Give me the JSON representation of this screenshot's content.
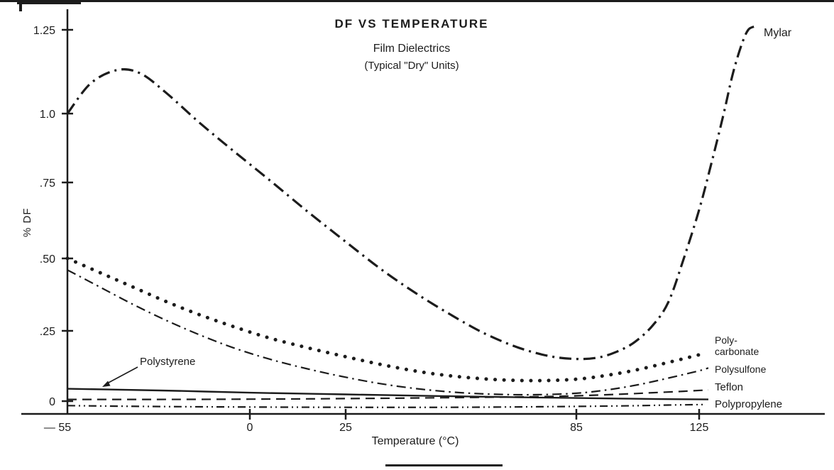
{
  "page": {
    "background": "#ffffff",
    "ink": "#1c1c1c"
  },
  "chart_data": {
    "type": "line",
    "title": "DF VS TEMPERATURE",
    "subtitle_lines": [
      "Film Dielectrics",
      "(Typical \"Dry\" Units)"
    ],
    "xlabel": "Temperature (°C)",
    "ylabel": "% DF",
    "xlim": [
      -55,
      145
    ],
    "ylim": [
      -0.05,
      1.3
    ],
    "grid": false,
    "legend_position": "labels-at-line-ends",
    "x_ticks": [
      {
        "value": -55,
        "label": "— 55"
      },
      {
        "value": 0,
        "label": "0"
      },
      {
        "value": 25,
        "label": "25"
      },
      {
        "value": 85,
        "label": "85"
      },
      {
        "value": 125,
        "label": "125"
      }
    ],
    "y_ticks": [
      {
        "value": 0,
        "label": "0"
      },
      {
        "value": 0.25,
        "label": ".25"
      },
      {
        "value": 0.5,
        "label": ".50"
      },
      {
        "value": 0.75,
        "label": ".75"
      },
      {
        "value": 1,
        "label": "1.0"
      },
      {
        "value": 1.25,
        "label": "1.25"
      }
    ],
    "series": [
      {
        "id": "mylar",
        "name": "Mylar",
        "display_label": "Mylar",
        "line_style": "dash-dot",
        "points": [
          [
            -55,
            1.0
          ],
          [
            -48,
            1.09
          ],
          [
            -40,
            1.13
          ],
          [
            -33,
            1.12
          ],
          [
            -25,
            1.06
          ],
          [
            -15,
            0.965
          ],
          [
            -5,
            0.865
          ],
          [
            5,
            0.76
          ],
          [
            15,
            0.655
          ],
          [
            25,
            0.555
          ],
          [
            35,
            0.455
          ],
          [
            45,
            0.365
          ],
          [
            55,
            0.285
          ],
          [
            62,
            0.235
          ],
          [
            70,
            0.19
          ],
          [
            78,
            0.16
          ],
          [
            85,
            0.15
          ],
          [
            92,
            0.155
          ],
          [
            98,
            0.175
          ],
          [
            104,
            0.21
          ],
          [
            110,
            0.27
          ],
          [
            115,
            0.35
          ],
          [
            120,
            0.5
          ],
          [
            125,
            0.66
          ],
          [
            129,
            0.82
          ],
          [
            133,
            1.0
          ],
          [
            136,
            1.12
          ],
          [
            139,
            1.21
          ],
          [
            141,
            1.25
          ],
          [
            143,
            1.26
          ]
        ]
      },
      {
        "id": "polycarbonate",
        "name": "Polycarbonate",
        "display_label": "Poly-\ncarbonate",
        "line_style": "dotted",
        "points": [
          [
            -55,
            0.5
          ],
          [
            -45,
            0.45
          ],
          [
            -35,
            0.4
          ],
          [
            -25,
            0.35
          ],
          [
            -15,
            0.305
          ],
          [
            -5,
            0.265
          ],
          [
            5,
            0.225
          ],
          [
            15,
            0.19
          ],
          [
            25,
            0.158
          ],
          [
            35,
            0.128
          ],
          [
            45,
            0.103
          ],
          [
            55,
            0.086
          ],
          [
            65,
            0.076
          ],
          [
            75,
            0.073
          ],
          [
            85,
            0.078
          ],
          [
            95,
            0.092
          ],
          [
            105,
            0.112
          ],
          [
            115,
            0.138
          ],
          [
            125,
            0.165
          ],
          [
            127,
            0.172
          ]
        ]
      },
      {
        "id": "polysulfone",
        "name": "Polysulfone",
        "display_label": "Polysulfone",
        "line_style": "dash-dot",
        "points": [
          [
            -55,
            0.46
          ],
          [
            -45,
            0.4
          ],
          [
            -35,
            0.34
          ],
          [
            -25,
            0.285
          ],
          [
            -15,
            0.235
          ],
          [
            -5,
            0.19
          ],
          [
            5,
            0.15
          ],
          [
            15,
            0.115
          ],
          [
            25,
            0.085
          ],
          [
            35,
            0.06
          ],
          [
            45,
            0.042
          ],
          [
            55,
            0.03
          ],
          [
            65,
            0.024
          ],
          [
            75,
            0.023
          ],
          [
            85,
            0.028
          ],
          [
            95,
            0.04
          ],
          [
            105,
            0.058
          ],
          [
            115,
            0.082
          ],
          [
            125,
            0.108
          ],
          [
            128,
            0.118
          ]
        ]
      },
      {
        "id": "polystyrene",
        "name": "Polystyrene",
        "display_label": "Polystyrene",
        "line_style": "solid",
        "points": [
          [
            -55,
            0.044
          ],
          [
            -40,
            0.041
          ],
          [
            -20,
            0.036
          ],
          [
            0,
            0.03
          ],
          [
            25,
            0.024
          ],
          [
            50,
            0.018
          ],
          [
            75,
            0.013
          ],
          [
            100,
            0.009
          ],
          [
            115,
            0.007
          ],
          [
            128,
            0.006
          ]
        ]
      },
      {
        "id": "teflon",
        "name": "Teflon",
        "display_label": "Teflon",
        "line_style": "dashed",
        "points": [
          [
            -55,
            0.006
          ],
          [
            -30,
            0.006
          ],
          [
            0,
            0.007
          ],
          [
            25,
            0.009
          ],
          [
            50,
            0.012
          ],
          [
            75,
            0.016
          ],
          [
            85,
            0.019
          ],
          [
            100,
            0.025
          ],
          [
            110,
            0.03
          ],
          [
            120,
            0.035
          ],
          [
            128,
            0.04
          ]
        ]
      },
      {
        "id": "polypropylene",
        "name": "Polypropylene",
        "display_label": "Polypropylene",
        "line_style": "dash-dot-dot",
        "points": [
          [
            -55,
            -0.016
          ],
          [
            -30,
            -0.019
          ],
          [
            0,
            -0.021
          ],
          [
            25,
            -0.022
          ],
          [
            50,
            -0.022
          ],
          [
            75,
            -0.02
          ],
          [
            100,
            -0.017
          ],
          [
            115,
            -0.014
          ],
          [
            127,
            -0.012
          ]
        ]
      }
    ]
  }
}
